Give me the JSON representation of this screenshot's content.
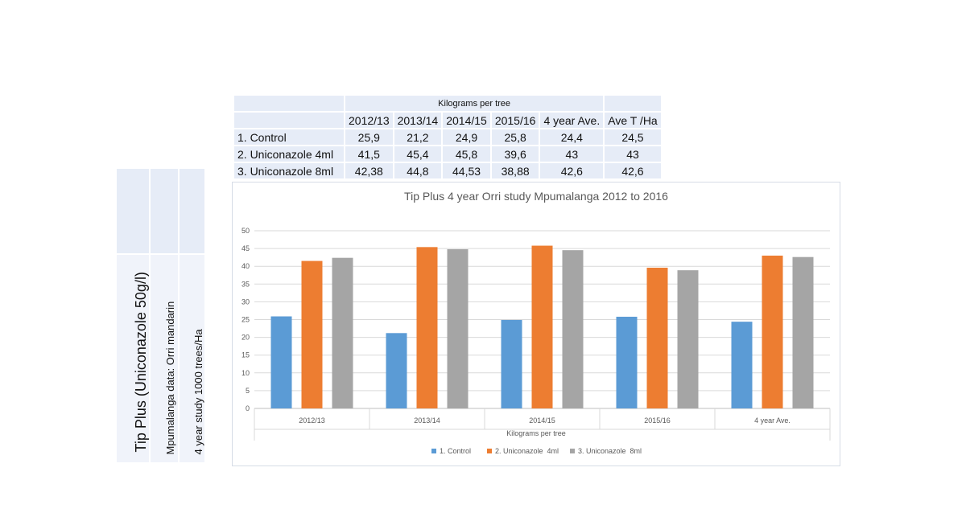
{
  "table": {
    "super_header": "Kilograms per tree",
    "columns": [
      "2012/13",
      "2013/14",
      "2014/15",
      "2015/16",
      "4 year Ave.",
      "Ave T /Ha"
    ],
    "rows": [
      {
        "label": "1. Control",
        "values": [
          "25,9",
          "21,2",
          "24,9",
          "25,8",
          "24,4",
          "24,5"
        ]
      },
      {
        "label": "2. Uniconazole  4ml",
        "values": [
          "41,5",
          "45,4",
          "45,8",
          "39,6",
          "43",
          "43"
        ]
      },
      {
        "label": "3. Uniconazole  8ml",
        "values": [
          "42,38",
          "44,8",
          "44,53",
          "38,88",
          "42,6",
          "42,6"
        ]
      }
    ]
  },
  "side": {
    "product": "Tip Plus (Uniconazole 50g/l)",
    "data_source": "Mpumalanga data: Orri mandarin",
    "study": "4 year study 1000 trees/Ha"
  },
  "chart_data": {
    "type": "bar",
    "title": "Tip Plus 4 year Orri study Mpumalanga 2012 to 2016",
    "xlabel": "Kilograms per tree",
    "ylabel": "",
    "ylim": [
      0,
      50
    ],
    "yticks": [
      0,
      5,
      10,
      15,
      20,
      25,
      30,
      35,
      40,
      45,
      50
    ],
    "grid": true,
    "legend": "bottom",
    "categories": [
      "2012/13",
      "2013/14",
      "2014/15",
      "2015/16",
      "4 year Ave."
    ],
    "series": [
      {
        "name": "1. Control",
        "color": "#5b9bd5",
        "values": [
          25.9,
          21.2,
          24.9,
          25.8,
          24.4
        ]
      },
      {
        "name": "2. Uniconazole  4ml",
        "color": "#ed7d31",
        "values": [
          41.5,
          45.4,
          45.8,
          39.6,
          43
        ]
      },
      {
        "name": "3. Uniconazole  8ml",
        "color": "#a5a5a5",
        "values": [
          42.38,
          44.8,
          44.53,
          38.88,
          42.6
        ]
      }
    ]
  }
}
